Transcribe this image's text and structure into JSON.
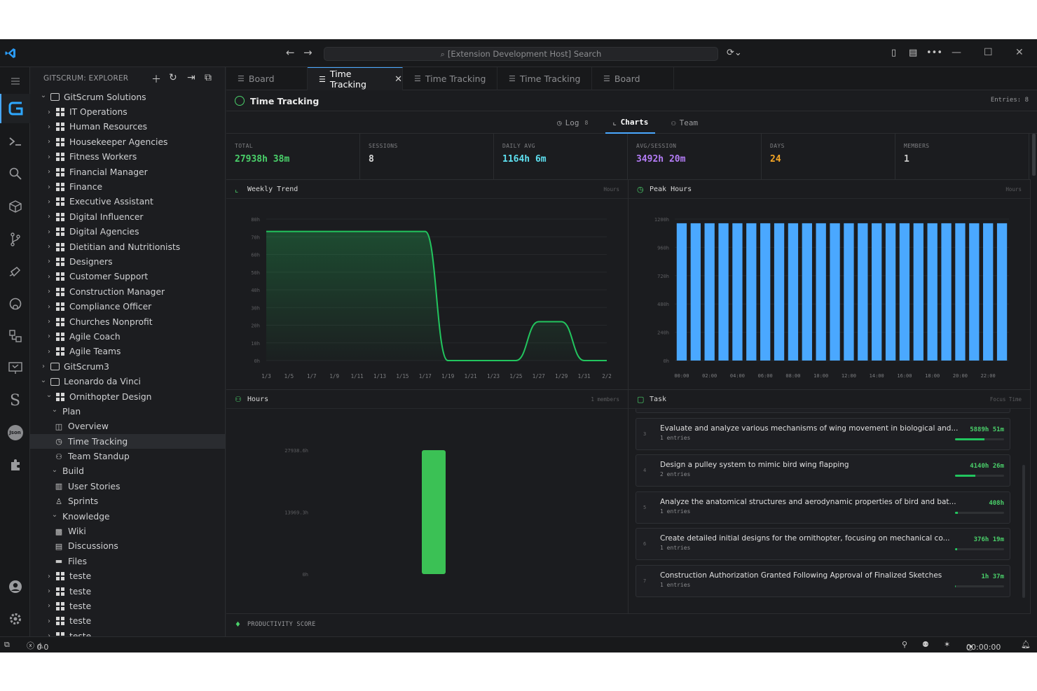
{
  "title_bar": {
    "search_text": "[Extension Development Host] Search"
  },
  "sidebar": {
    "title": "GITSCRUM: EXPLORER",
    "tree": [
      {
        "label": "GitScrum Solutions",
        "depth": 0,
        "chev": "down",
        "icon": "repo"
      },
      {
        "label": "IT Operations",
        "depth": 1,
        "chev": "right",
        "icon": "board"
      },
      {
        "label": "Human Resources",
        "depth": 1,
        "chev": "right",
        "icon": "board"
      },
      {
        "label": "Housekeeper Agencies",
        "depth": 1,
        "chev": "right",
        "icon": "board"
      },
      {
        "label": "Fitness Workers",
        "depth": 1,
        "chev": "right",
        "icon": "board"
      },
      {
        "label": "Financial Manager",
        "depth": 1,
        "chev": "right",
        "icon": "board"
      },
      {
        "label": "Finance",
        "depth": 1,
        "chev": "right",
        "icon": "board"
      },
      {
        "label": "Executive Assistant",
        "depth": 1,
        "chev": "right",
        "icon": "board"
      },
      {
        "label": "Digital Influencer",
        "depth": 1,
        "chev": "right",
        "icon": "board"
      },
      {
        "label": "Digital Agencies",
        "depth": 1,
        "chev": "right",
        "icon": "board"
      },
      {
        "label": "Dietitian and Nutritionists",
        "depth": 1,
        "chev": "right",
        "icon": "board"
      },
      {
        "label": "Designers",
        "depth": 1,
        "chev": "right",
        "icon": "board"
      },
      {
        "label": "Customer Support",
        "depth": 1,
        "chev": "right",
        "icon": "board"
      },
      {
        "label": "Construction Manager",
        "depth": 1,
        "chev": "right",
        "icon": "board"
      },
      {
        "label": "Compliance Officer",
        "depth": 1,
        "chev": "right",
        "icon": "board"
      },
      {
        "label": "Churches Nonprofit",
        "depth": 1,
        "chev": "right",
        "icon": "board"
      },
      {
        "label": "Agile Coach",
        "depth": 1,
        "chev": "right",
        "icon": "board"
      },
      {
        "label": "Agile Teams",
        "depth": 1,
        "chev": "right",
        "icon": "board"
      },
      {
        "label": "GitScrum3",
        "depth": 0,
        "chev": "right",
        "icon": "repo"
      },
      {
        "label": "Leonardo da Vinci",
        "depth": 0,
        "chev": "down",
        "icon": "repo"
      },
      {
        "label": "Ornithopter Design",
        "depth": 1,
        "chev": "down",
        "icon": "board"
      },
      {
        "label": "Plan",
        "depth": 2,
        "chev": "down",
        "icon": "none"
      },
      {
        "label": "Overview",
        "depth": 3,
        "chev": "none",
        "icon": "overview"
      },
      {
        "label": "Time Tracking",
        "depth": 3,
        "chev": "none",
        "icon": "clock",
        "selected": true
      },
      {
        "label": "Team Standup",
        "depth": 3,
        "chev": "none",
        "icon": "team"
      },
      {
        "label": "Build",
        "depth": 2,
        "chev": "down",
        "icon": "none"
      },
      {
        "label": "User Stories",
        "depth": 3,
        "chev": "none",
        "icon": "book"
      },
      {
        "label": "Sprints",
        "depth": 3,
        "chev": "none",
        "icon": "runner"
      },
      {
        "label": "Knowledge",
        "depth": 2,
        "chev": "down",
        "icon": "none"
      },
      {
        "label": "Wiki",
        "depth": 3,
        "chev": "none",
        "icon": "wiki"
      },
      {
        "label": "Discussions",
        "depth": 3,
        "chev": "none",
        "icon": "chat"
      },
      {
        "label": "Files",
        "depth": 3,
        "chev": "none",
        "icon": "folder"
      },
      {
        "label": "teste",
        "depth": 1,
        "chev": "right",
        "icon": "board"
      },
      {
        "label": "teste",
        "depth": 1,
        "chev": "right",
        "icon": "board"
      },
      {
        "label": "teste",
        "depth": 1,
        "chev": "right",
        "icon": "board"
      },
      {
        "label": "teste",
        "depth": 1,
        "chev": "right",
        "icon": "board"
      },
      {
        "label": "teste",
        "depth": 1,
        "chev": "right",
        "icon": "board"
      }
    ]
  },
  "tabs": [
    {
      "label": "Board",
      "active": false
    },
    {
      "label": "Time Tracking",
      "active": true
    },
    {
      "label": "Time Tracking",
      "active": false
    },
    {
      "label": "Time Tracking",
      "active": false
    },
    {
      "label": "Board",
      "active": false
    }
  ],
  "page": {
    "title": "Time Tracking",
    "entries_label": "Entries: 8",
    "subtabs": [
      {
        "label": "Log",
        "count": "8",
        "icon": "clock-icon"
      },
      {
        "label": "Charts",
        "count": "",
        "icon": "chart-icon",
        "active": true
      },
      {
        "label": "Team",
        "count": "",
        "icon": "team-icon"
      }
    ],
    "stats": [
      {
        "label": "TOTAL",
        "value": "27938h 38m",
        "color": "#4ad06a"
      },
      {
        "label": "SESSIONS",
        "value": "8",
        "color": "#d8d8d8"
      },
      {
        "label": "DAILY AVG",
        "value": "1164h 6m",
        "color": "#5ee0f0"
      },
      {
        "label": "AVG/SESSION",
        "value": "3492h 20m",
        "color": "#b37cf5"
      },
      {
        "label": "DAYS",
        "value": "24",
        "color": "#f5a524"
      },
      {
        "label": "MEMBERS",
        "value": "1",
        "color": "#c8c8c8"
      }
    ],
    "productivity_label": "PRODUCTIVITY SCORE"
  },
  "panels": {
    "weekly_trend": {
      "title": "Weekly Trend",
      "right": "Hours"
    },
    "peak_hours": {
      "title": "Peak Hours",
      "right": "Hours"
    },
    "hours": {
      "title": "Hours",
      "right": "1 members"
    },
    "task": {
      "title": "Task",
      "right": "Focus Time"
    }
  },
  "chart_data": [
    {
      "type": "area",
      "title": "Weekly Trend",
      "x": [
        "1/3",
        "1/5",
        "1/7",
        "1/9",
        "1/11",
        "1/13",
        "1/15",
        "1/17",
        "1/19",
        "1/21",
        "1/23",
        "1/25",
        "1/27",
        "1/29",
        "1/31",
        "2/2"
      ],
      "y_ticks": [
        "0h",
        "10h",
        "20h",
        "30h",
        "40h",
        "50h",
        "60h",
        "70h",
        "80h"
      ],
      "ylim": [
        0,
        80
      ],
      "series": [
        {
          "values": [
            73,
            73,
            73,
            73,
            73,
            73,
            73,
            73,
            0,
            0,
            0,
            0,
            22,
            22,
            0,
            0
          ]
        }
      ],
      "color": "#22c55e"
    },
    {
      "type": "bar",
      "title": "Peak Hours",
      "x_ticks": [
        "00:00",
        "02:00",
        "04:00",
        "06:00",
        "08:00",
        "10:00",
        "12:00",
        "14:00",
        "16:00",
        "18:00",
        "20:00",
        "22:00"
      ],
      "y_ticks": [
        "0h",
        "240h",
        "480h",
        "720h",
        "960h",
        "1200h"
      ],
      "ylim": [
        0,
        1200
      ],
      "values": [
        1165,
        1165,
        1165,
        1165,
        1165,
        1165,
        1165,
        1165,
        1165,
        1165,
        1165,
        1165,
        1165,
        1165,
        1165,
        1165,
        1165,
        1165,
        1165,
        1165,
        1165,
        1165,
        1165,
        1165
      ],
      "color": "#4aa8ff"
    },
    {
      "type": "bar",
      "title": "Hours",
      "y_ticks": [
        "0h",
        "13969.3h",
        "27938.6h"
      ],
      "ylim": [
        0,
        27938.6
      ],
      "values": [
        27938.6
      ],
      "color": "#3bc155"
    }
  ],
  "tasks": [
    {
      "num": "",
      "name": "",
      "sub": "1 entries",
      "time": "",
      "pct": 0.85
    },
    {
      "num": "3",
      "name": "Evaluate and analyze various mechanisms of wing movement in biological and...",
      "sub": "1 entries",
      "time": "5889h 51m",
      "pct": 0.6
    },
    {
      "num": "4",
      "name": "Design a pulley system to mimic bird wing flapping",
      "sub": "2 entries",
      "time": "4140h 26m",
      "pct": 0.42
    },
    {
      "num": "5",
      "name": "Analyze the anatomical structures and aerodynamic properties of bird and bat...",
      "sub": "1 entries",
      "time": "408h",
      "pct": 0.05
    },
    {
      "num": "6",
      "name": "Create detailed initial designs for the ornithopter, focusing on mechanical co...",
      "sub": "1 entries",
      "time": "376h 19m",
      "pct": 0.04
    },
    {
      "num": "7",
      "name": "Construction Authorization Granted Following Approval of Finalized Sketches",
      "sub": "1 entries",
      "time": "1h 37m",
      "pct": 0.0
    }
  ],
  "statusbar": {
    "errors": "0",
    "warnings": "0",
    "timer": "00:00:00"
  }
}
